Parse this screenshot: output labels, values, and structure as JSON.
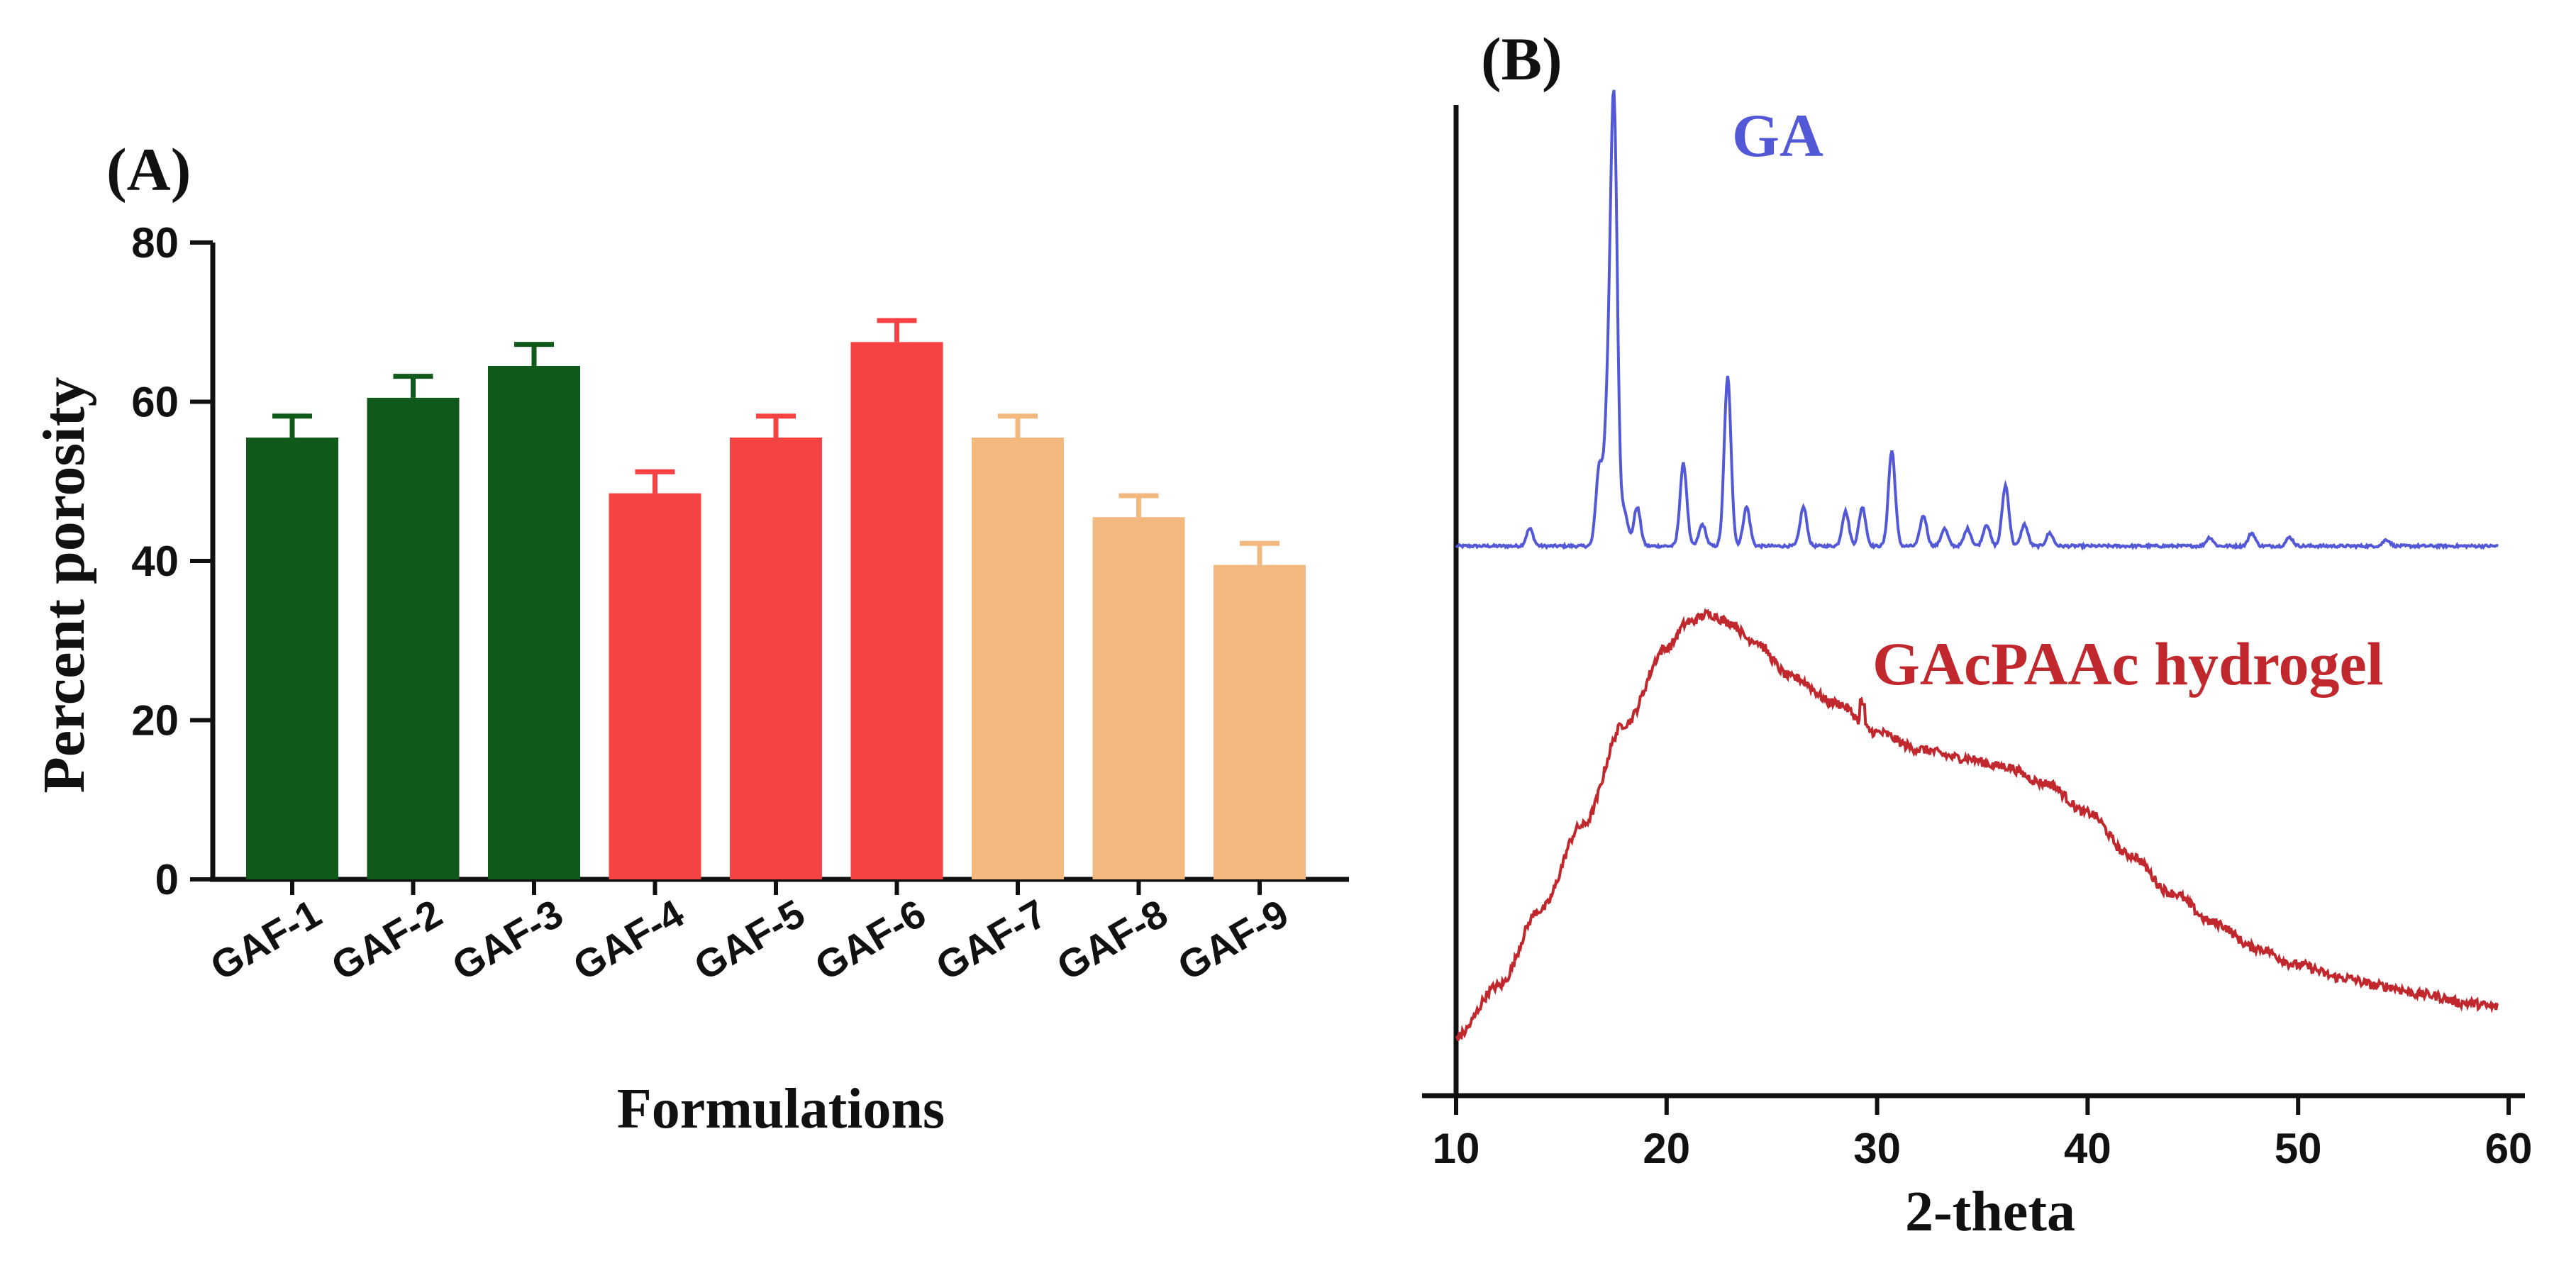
{
  "chart_data": [
    {
      "type": "bar",
      "panel_label": "(A)",
      "title": "",
      "xlabel": "Formulations",
      "ylabel": "Percent porosity",
      "ylim": [
        0,
        80
      ],
      "yticks": [
        "0",
        "20",
        "40",
        "60",
        "80"
      ],
      "categories": [
        "GAF-1",
        "GAF-2",
        "GAF-3",
        "GAF-4",
        "GAF-5",
        "GAF-6",
        "GAF-7",
        "GAF-8",
        "GAF-9"
      ],
      "values": [
        55.5,
        60.5,
        64.5,
        48.5,
        55.5,
        67.5,
        55.5,
        45.5,
        39.5
      ],
      "errors": [
        2.7,
        2.7,
        2.7,
        2.7,
        2.7,
        2.7,
        2.7,
        2.7,
        2.7
      ],
      "colors": [
        "#0f5a1a",
        "#0f5a1a",
        "#0f5a1a",
        "#f54242",
        "#f54242",
        "#f54242",
        "#f2b87e",
        "#f2b87e",
        "#f2b87e"
      ],
      "grid": false
    },
    {
      "type": "line",
      "panel_label": "(B)",
      "xlabel": "2-theta",
      "ylabel": "",
      "xlim": [
        10,
        60
      ],
      "xticks": [
        "10",
        "20",
        "30",
        "40",
        "50",
        "60"
      ],
      "series": [
        {
          "name": "GA",
          "color": "#5358d6",
          "baseline": 0.0,
          "peaks": [
            [
              13.5,
              0.04
            ],
            [
              16.8,
              0.18
            ],
            [
              17.2,
              0.28
            ],
            [
              17.5,
              1.0
            ],
            [
              18.0,
              0.08
            ],
            [
              18.6,
              0.09
            ],
            [
              20.8,
              0.19
            ],
            [
              21.7,
              0.05
            ],
            [
              22.9,
              0.39
            ],
            [
              23.8,
              0.09
            ],
            [
              26.5,
              0.09
            ],
            [
              28.5,
              0.08
            ],
            [
              29.3,
              0.09
            ],
            [
              30.7,
              0.22
            ],
            [
              32.2,
              0.07
            ],
            [
              33.2,
              0.04
            ],
            [
              34.3,
              0.04
            ],
            [
              35.2,
              0.05
            ],
            [
              36.1,
              0.14
            ],
            [
              37.0,
              0.05
            ],
            [
              38.2,
              0.03
            ],
            [
              45.8,
              0.02
            ],
            [
              47.8,
              0.03
            ],
            [
              49.6,
              0.02
            ],
            [
              54.2,
              0.015
            ]
          ]
        },
        {
          "name": "GAcPAAc hydrogel",
          "color": "#c0282d",
          "x": [
            10,
            12,
            14,
            16,
            18,
            20,
            21,
            22,
            23,
            24,
            26,
            28,
            30,
            32,
            34,
            36,
            38,
            40,
            42,
            44,
            46,
            48,
            50,
            52,
            54,
            56,
            58,
            59.5
          ],
          "y": [
            0.0,
            0.12,
            0.3,
            0.5,
            0.74,
            0.92,
            0.98,
            1.0,
            0.98,
            0.94,
            0.85,
            0.79,
            0.72,
            0.68,
            0.66,
            0.64,
            0.6,
            0.53,
            0.43,
            0.34,
            0.27,
            0.21,
            0.17,
            0.14,
            0.12,
            0.1,
            0.08,
            0.07
          ]
        }
      ],
      "grid": false
    }
  ]
}
